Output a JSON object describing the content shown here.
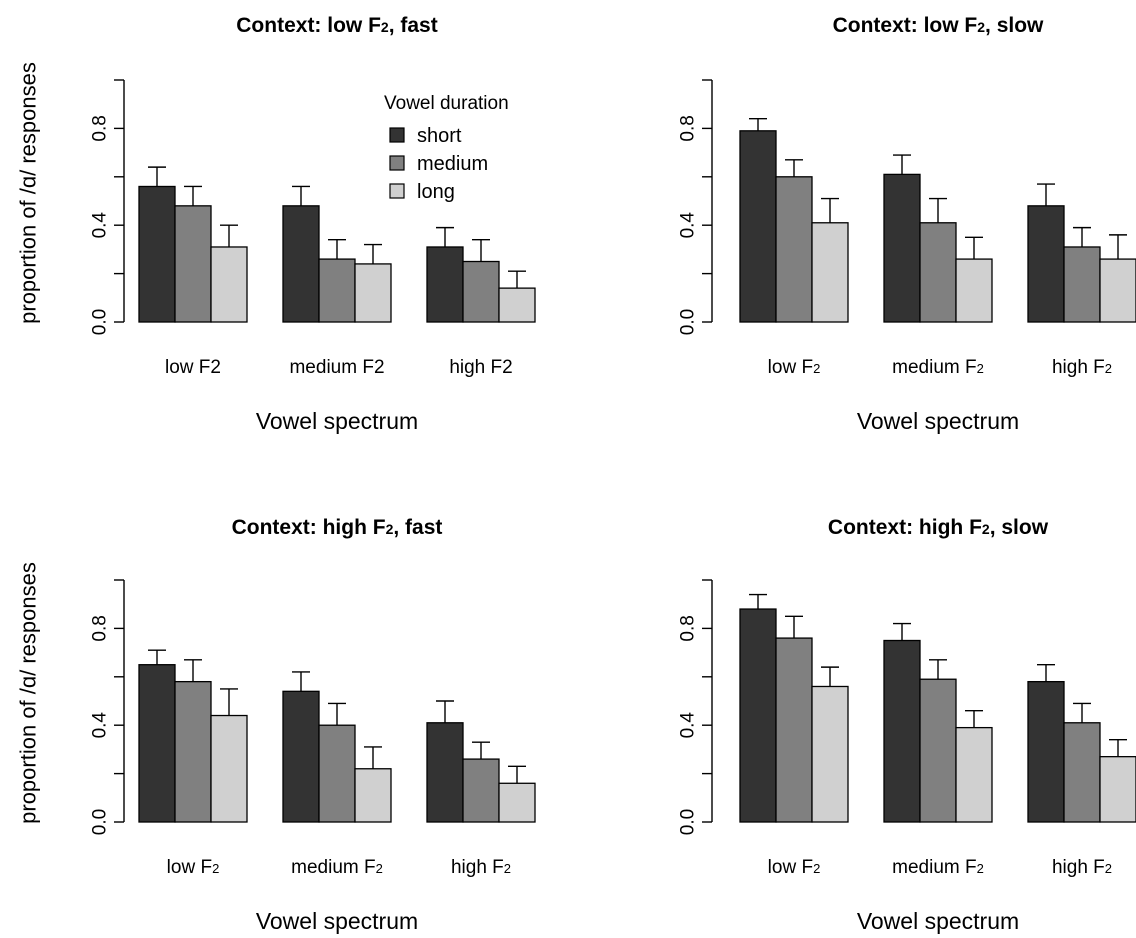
{
  "colors": {
    "short": "#333333",
    "medium": "#808080",
    "long": "#d0d0d0",
    "axis": "#000000"
  },
  "legend": {
    "title": "Vowel duration",
    "placement": "top-right of first panel",
    "items": [
      "short",
      "medium",
      "long"
    ]
  },
  "chart_data": [
    {
      "type": "bar",
      "title": {
        "pre": "Context: low F",
        "sub": "2",
        "post": ", fast"
      },
      "xlabel": "Vowel spectrum",
      "ylabel": "proportion of /ɑ/ responses",
      "ylim": [
        0,
        1
      ],
      "yticks": [
        "0.0",
        "0.4",
        "0.8"
      ],
      "categories": [
        {
          "text": "low F2",
          "sub": ""
        },
        {
          "text": "medium F2",
          "sub": ""
        },
        {
          "text": "high F2",
          "sub": ""
        }
      ],
      "series": [
        {
          "name": "short",
          "values": [
            0.56,
            0.48,
            0.31
          ],
          "upper": [
            0.64,
            0.56,
            0.39
          ]
        },
        {
          "name": "medium",
          "values": [
            0.48,
            0.26,
            0.25
          ],
          "upper": [
            0.56,
            0.34,
            0.34
          ]
        },
        {
          "name": "long",
          "values": [
            0.31,
            0.24,
            0.14
          ],
          "upper": [
            0.4,
            0.32,
            0.21
          ]
        }
      ]
    },
    {
      "type": "bar",
      "title": {
        "pre": "Context: low F",
        "sub": "2",
        "post": ", slow"
      },
      "xlabel": "Vowel spectrum",
      "ylabel": "",
      "ylim": [
        0,
        1
      ],
      "yticks": [
        "0.0",
        "0.4",
        "0.8"
      ],
      "categories": [
        {
          "text": "low F",
          "sub": "2"
        },
        {
          "text": "medium F",
          "sub": "2"
        },
        {
          "text": "high F",
          "sub": "2"
        }
      ],
      "series": [
        {
          "name": "short",
          "values": [
            0.79,
            0.61,
            0.48
          ],
          "upper": [
            0.84,
            0.69,
            0.57
          ]
        },
        {
          "name": "medium",
          "values": [
            0.6,
            0.41,
            0.31
          ],
          "upper": [
            0.67,
            0.51,
            0.39
          ]
        },
        {
          "name": "long",
          "values": [
            0.41,
            0.26,
            0.26
          ],
          "upper": [
            0.51,
            0.35,
            0.36
          ]
        }
      ]
    },
    {
      "type": "bar",
      "title": {
        "pre": "Context: high F",
        "sub": "2",
        "post": ", fast"
      },
      "xlabel": "Vowel spectrum",
      "ylabel": "proportion of /ɑ/ responses",
      "ylim": [
        0,
        1
      ],
      "yticks": [
        "0.0",
        "0.4",
        "0.8"
      ],
      "categories": [
        {
          "text": "low F",
          "sub": "2"
        },
        {
          "text": "medium F",
          "sub": "2"
        },
        {
          "text": "high F",
          "sub": "2"
        }
      ],
      "series": [
        {
          "name": "short",
          "values": [
            0.65,
            0.54,
            0.41
          ],
          "upper": [
            0.71,
            0.62,
            0.5
          ]
        },
        {
          "name": "medium",
          "values": [
            0.58,
            0.4,
            0.26
          ],
          "upper": [
            0.67,
            0.49,
            0.33
          ]
        },
        {
          "name": "long",
          "values": [
            0.44,
            0.22,
            0.16
          ],
          "upper": [
            0.55,
            0.31,
            0.23
          ]
        }
      ]
    },
    {
      "type": "bar",
      "title": {
        "pre": "Context: high F",
        "sub": "2",
        "post": ", slow"
      },
      "xlabel": "Vowel spectrum",
      "ylabel": "",
      "ylim": [
        0,
        1
      ],
      "yticks": [
        "0.0",
        "0.4",
        "0.8"
      ],
      "categories": [
        {
          "text": "low F",
          "sub": "2"
        },
        {
          "text": "medium F",
          "sub": "2"
        },
        {
          "text": "high F",
          "sub": "2"
        }
      ],
      "series": [
        {
          "name": "short",
          "values": [
            0.88,
            0.75,
            0.58
          ],
          "upper": [
            0.94,
            0.82,
            0.65
          ]
        },
        {
          "name": "medium",
          "values": [
            0.76,
            0.59,
            0.41
          ],
          "upper": [
            0.85,
            0.67,
            0.49
          ]
        },
        {
          "name": "long",
          "values": [
            0.56,
            0.39,
            0.27
          ],
          "upper": [
            0.64,
            0.46,
            0.34
          ]
        }
      ]
    }
  ]
}
